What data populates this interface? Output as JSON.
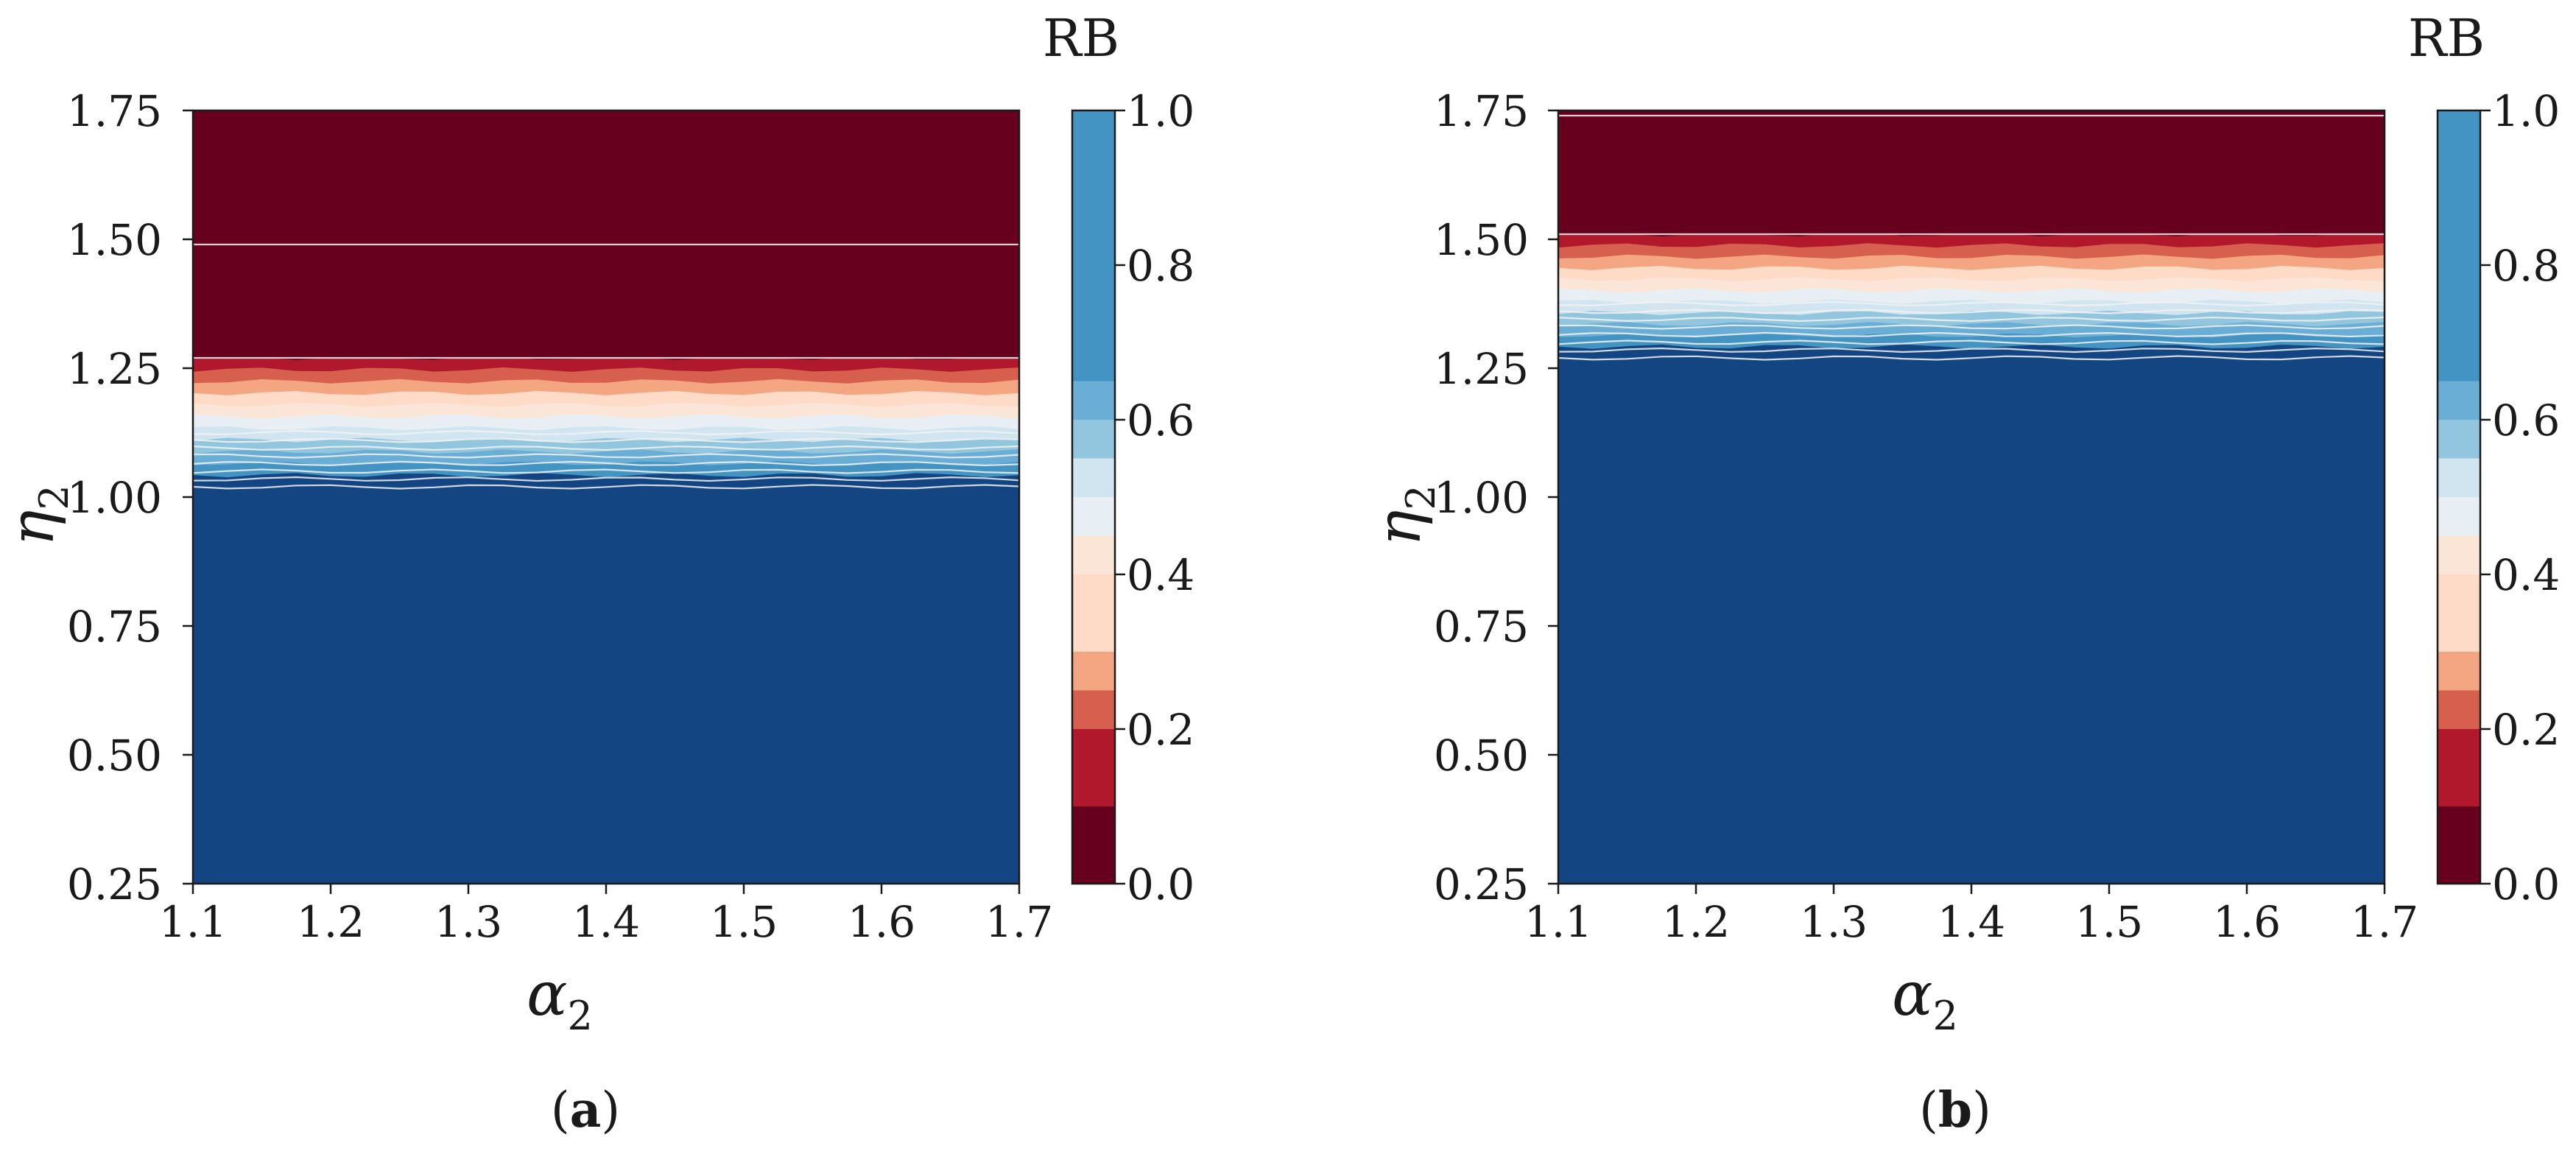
{
  "chart_data": [
    {
      "type": "heatmap",
      "subtype": "filled-contour",
      "panel_label": "a",
      "xlabel_main": "α",
      "xlabel_sub": "2",
      "ylabel_main": "η",
      "ylabel_sub": "2",
      "xlim": [
        1.1,
        1.7
      ],
      "ylim": [
        0.25,
        1.75
      ],
      "xticks": [
        "1.1",
        "1.2",
        "1.3",
        "1.4",
        "1.5",
        "1.6",
        "1.7"
      ],
      "yticks": [
        "0.25",
        "0.50",
        "0.75",
        "1.00",
        "1.25",
        "1.50",
        "1.75"
      ],
      "colorbar_title": "RB",
      "transition_low_eta": 1.02,
      "transition_high_eta": 1.27,
      "contour_lines_eta": [
        1.02,
        1.035,
        1.05,
        1.065,
        1.08,
        1.095,
        1.11,
        1.125,
        1.27,
        1.49
      ]
    },
    {
      "type": "heatmap",
      "subtype": "filled-contour",
      "panel_label": "b",
      "xlabel_main": "α",
      "xlabel_sub": "2",
      "ylabel_main": "η",
      "ylabel_sub": "2",
      "xlim": [
        1.1,
        1.7
      ],
      "ylim": [
        0.25,
        1.75
      ],
      "xticks": [
        "1.1",
        "1.2",
        "1.3",
        "1.4",
        "1.5",
        "1.6",
        "1.7"
      ],
      "yticks": [
        "0.25",
        "0.50",
        "0.75",
        "1.00",
        "1.25",
        "1.50",
        "1.75"
      ],
      "colorbar_title": "RB",
      "transition_low_eta": 1.27,
      "transition_high_eta": 1.51,
      "contour_lines_eta": [
        1.27,
        1.285,
        1.3,
        1.315,
        1.33,
        1.345,
        1.36,
        1.375,
        1.51,
        1.74
      ]
    }
  ],
  "colorbar": {
    "ticks": [
      "0.0",
      "0.2",
      "0.4",
      "0.6",
      "0.8",
      "1.0"
    ],
    "tick_values": [
      0.0,
      0.2,
      0.4,
      0.6,
      0.8,
      1.0
    ],
    "levels": [
      0.0,
      0.1,
      0.2,
      0.25,
      0.3,
      0.4,
      0.45,
      0.5,
      0.55,
      0.6,
      0.65,
      1.0
    ],
    "colors": [
      "#67001f",
      "#b2182b",
      "#d6604d",
      "#f4a582",
      "#fddbc7",
      "#fbe5d6",
      "#e7eff5",
      "#d1e5f0",
      "#92c5de",
      "#6aaed6",
      "#4393c3",
      "#134582"
    ]
  },
  "captions": {
    "a": {
      "open": "(",
      "letter": "a",
      "close": ")"
    },
    "b": {
      "open": "(",
      "letter": "b",
      "close": ")"
    }
  }
}
